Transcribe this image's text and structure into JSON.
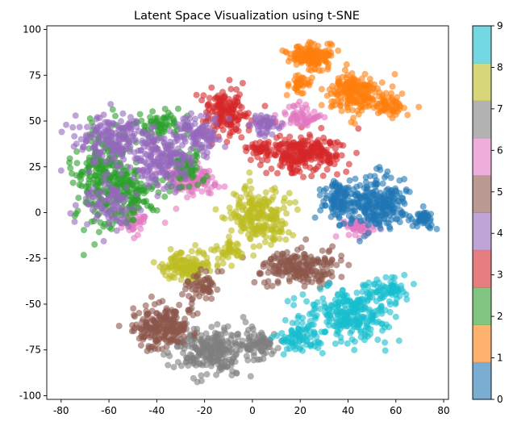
{
  "chart_data": {
    "type": "scatter",
    "title": "Latent Space Visualization using t-SNE",
    "xlabel": "",
    "ylabel": "",
    "xlim": [
      -86,
      82
    ],
    "ylim": [
      -102,
      102
    ],
    "x_ticks": [
      -80,
      -60,
      -40,
      -20,
      0,
      20,
      40,
      60,
      80
    ],
    "y_ticks": [
      -100,
      -75,
      -50,
      -25,
      0,
      25,
      50,
      75,
      100
    ],
    "grid": false,
    "point_alpha": 0.6,
    "colorbar": {
      "min": 0,
      "max": 9,
      "ticks": [
        0,
        1,
        2,
        3,
        4,
        5,
        6,
        7,
        8,
        9
      ],
      "colormap": "tab10"
    },
    "clusters": [
      {
        "label": 0,
        "color": "#1f77b4",
        "blobs": [
          {
            "cx": 52,
            "cy": 5,
            "rx": 13,
            "ry": 13,
            "n": 260
          },
          {
            "cx": 35,
            "cy": 8,
            "rx": 7,
            "ry": 10,
            "n": 90
          },
          {
            "cx": 72,
            "cy": -4,
            "rx": 4,
            "ry": 4,
            "n": 40
          }
        ]
      },
      {
        "label": 1,
        "color": "#ff7f0e",
        "blobs": [
          {
            "cx": 25,
            "cy": 85,
            "rx": 9,
            "ry": 6,
            "n": 160
          },
          {
            "cx": 43,
            "cy": 65,
            "rx": 10,
            "ry": 10,
            "n": 200
          },
          {
            "cx": 57,
            "cy": 58,
            "rx": 6,
            "ry": 5,
            "n": 60
          },
          {
            "cx": 20,
            "cy": 70,
            "rx": 5,
            "ry": 5,
            "n": 40
          }
        ]
      },
      {
        "label": 2,
        "color": "#2ca02c",
        "blobs": [
          {
            "cx": -62,
            "cy": 20,
            "rx": 12,
            "ry": 25,
            "n": 260
          },
          {
            "cx": -50,
            "cy": 10,
            "rx": 9,
            "ry": 12,
            "n": 110
          },
          {
            "cx": -38,
            "cy": 48,
            "rx": 8,
            "ry": 6,
            "n": 70
          },
          {
            "cx": -28,
            "cy": 25,
            "rx": 8,
            "ry": 10,
            "n": 70
          }
        ]
      },
      {
        "label": 3,
        "color": "#d62728",
        "blobs": [
          {
            "cx": -12,
            "cy": 55,
            "rx": 8,
            "ry": 12,
            "n": 150
          },
          {
            "cx": 22,
            "cy": 33,
            "rx": 14,
            "ry": 10,
            "n": 230
          },
          {
            "cx": 4,
            "cy": 35,
            "rx": 5,
            "ry": 5,
            "n": 40
          }
        ]
      },
      {
        "label": 4,
        "color": "#9467bd",
        "blobs": [
          {
            "cx": -58,
            "cy": 40,
            "rx": 13,
            "ry": 12,
            "n": 180
          },
          {
            "cx": -38,
            "cy": 28,
            "rx": 10,
            "ry": 15,
            "n": 160
          },
          {
            "cx": -22,
            "cy": 42,
            "rx": 8,
            "ry": 10,
            "n": 100
          },
          {
            "cx": -60,
            "cy": 5,
            "rx": 10,
            "ry": 12,
            "n": 90
          },
          {
            "cx": 5,
            "cy": 48,
            "rx": 5,
            "ry": 5,
            "n": 50
          }
        ]
      },
      {
        "label": 5,
        "color": "#8c564b",
        "blobs": [
          {
            "cx": -38,
            "cy": -62,
            "rx": 11,
            "ry": 10,
            "n": 220
          },
          {
            "cx": 20,
            "cy": -30,
            "rx": 15,
            "ry": 9,
            "n": 200
          },
          {
            "cx": -20,
            "cy": -40,
            "rx": 7,
            "ry": 7,
            "n": 60
          }
        ]
      },
      {
        "label": 6,
        "color": "#e377c2",
        "blobs": [
          {
            "cx": -25,
            "cy": 18,
            "rx": 9,
            "ry": 8,
            "n": 120
          },
          {
            "cx": 20,
            "cy": 52,
            "rx": 7,
            "ry": 5,
            "n": 60
          },
          {
            "cx": 45,
            "cy": -8,
            "rx": 6,
            "ry": 5,
            "n": 50
          },
          {
            "cx": -50,
            "cy": -5,
            "rx": 7,
            "ry": 8,
            "n": 40
          }
        ]
      },
      {
        "label": 7,
        "color": "#7f7f7f",
        "blobs": [
          {
            "cx": -18,
            "cy": -75,
            "rx": 15,
            "ry": 11,
            "n": 260
          },
          {
            "cx": 2,
            "cy": -72,
            "rx": 7,
            "ry": 8,
            "n": 70
          }
        ]
      },
      {
        "label": 8,
        "color": "#bcbd22",
        "blobs": [
          {
            "cx": 3,
            "cy": -2,
            "rx": 12,
            "ry": 14,
            "n": 220
          },
          {
            "cx": -28,
            "cy": -30,
            "rx": 10,
            "ry": 7,
            "n": 130
          },
          {
            "cx": -10,
            "cy": -20,
            "rx": 5,
            "ry": 5,
            "n": 40
          }
        ]
      },
      {
        "label": 9,
        "color": "#17becf",
        "blobs": [
          {
            "cx": 40,
            "cy": -55,
            "rx": 16,
            "ry": 13,
            "n": 260
          },
          {
            "cx": 58,
            "cy": -42,
            "rx": 6,
            "ry": 6,
            "n": 60
          },
          {
            "cx": 20,
            "cy": -68,
            "rx": 8,
            "ry": 7,
            "n": 80
          }
        ]
      }
    ]
  }
}
